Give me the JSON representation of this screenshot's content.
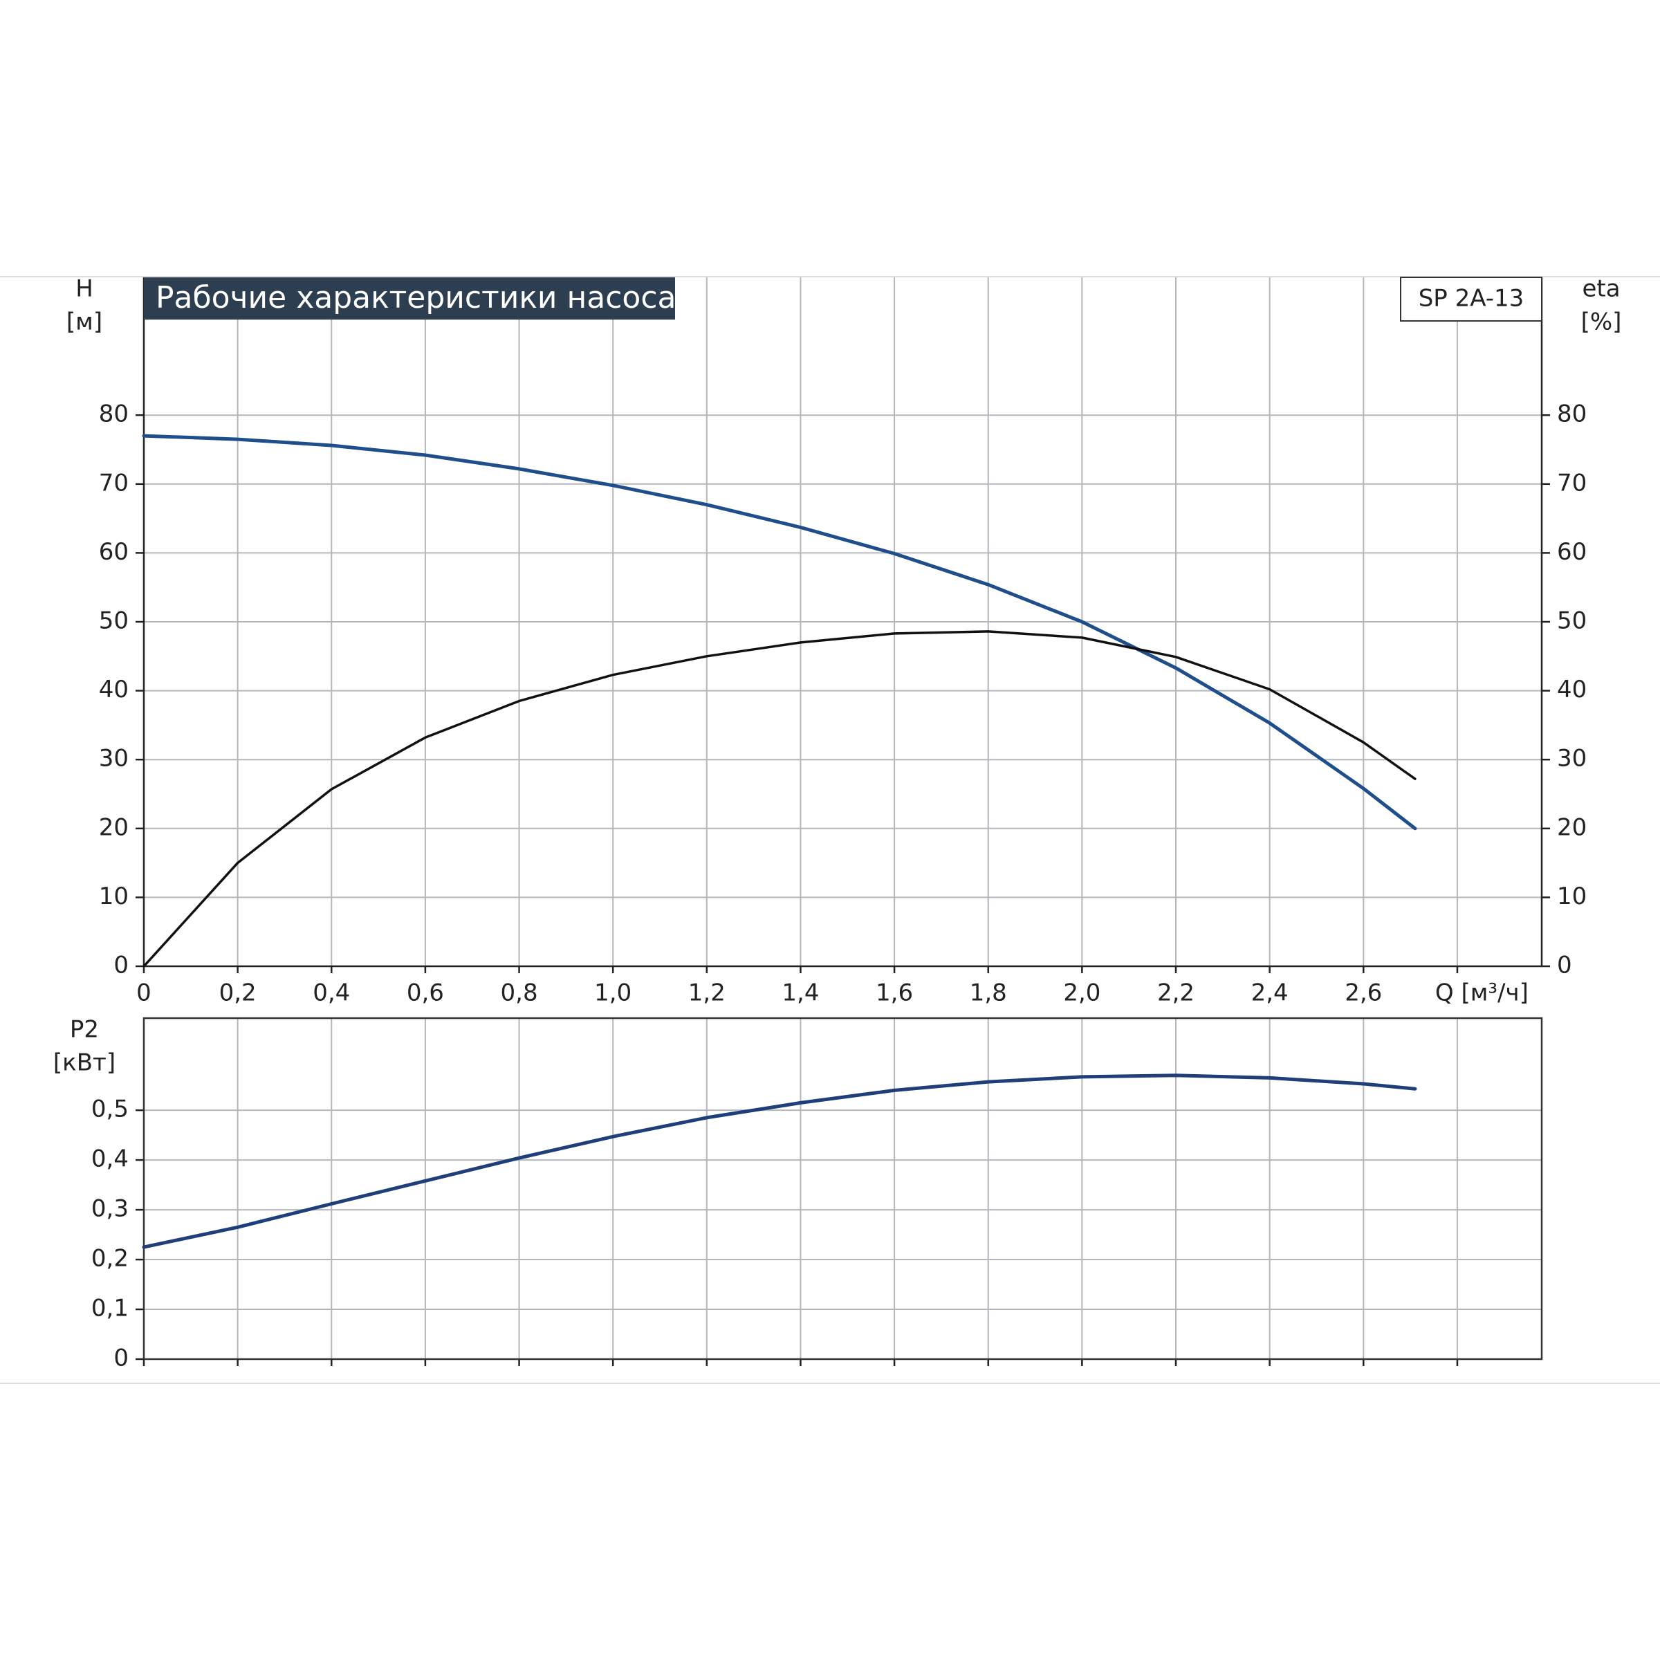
{
  "chart_data": [
    {
      "type": "line",
      "title": "Рабочие характеристики насоса",
      "model": "SP 2A-13",
      "ylabel": "H",
      "yunit": "[м]",
      "y2label": "eta",
      "y2unit": "[%]",
      "x": [
        0,
        0.2,
        0.4,
        0.6,
        0.8,
        1.0,
        1.2,
        1.4,
        1.6,
        1.8,
        2.0,
        2.2,
        2.4,
        2.6,
        2.71
      ],
      "xlim": [
        0,
        2.98
      ],
      "xticks": [
        0,
        {
          "value": 0.2,
          "label": "0,2"
        },
        {
          "value": 0.4,
          "label": "0,4"
        },
        {
          "value": 0.6,
          "label": "0,6"
        },
        {
          "value": 0.8,
          "label": "0,8"
        },
        {
          "value": 1.0,
          "label": "1,0"
        },
        {
          "value": 1.2,
          "label": "1,2"
        },
        {
          "value": 1.4,
          "label": "1,4"
        },
        {
          "value": 1.6,
          "label": "1,6"
        },
        {
          "value": 1.8,
          "label": "1,8"
        },
        {
          "value": 2.0,
          "label": "2,0"
        },
        {
          "value": 2.2,
          "label": "2,2"
        },
        {
          "value": 2.4,
          "label": "2,4"
        },
        {
          "value": 2.6,
          "label": "2,6"
        },
        {
          "value": 2.8,
          "label": "Q [м³/ч]"
        }
      ],
      "ylim": [
        0,
        100
      ],
      "yticks": [
        0,
        10,
        20,
        30,
        40,
        50,
        60,
        70,
        80
      ],
      "y2lim": [
        0,
        100
      ],
      "y2ticks": [
        0,
        10,
        20,
        30,
        40,
        50,
        60,
        70,
        80
      ],
      "grid": true,
      "series": [
        {
          "name": "H",
          "color": "#1f4e8c",
          "values": [
            77,
            76.5,
            75.6,
            74.2,
            72.2,
            69.8,
            67.0,
            63.7,
            59.9,
            55.4,
            50.0,
            43.3,
            35.3,
            25.8,
            20
          ]
        },
        {
          "name": "eta",
          "color": "#111111",
          "axis": "y2",
          "values": [
            0,
            15,
            25.7,
            33.2,
            38.5,
            42.3,
            45.0,
            47.0,
            48.3,
            48.6,
            47.7,
            44.9,
            40.2,
            32.5,
            27.2
          ]
        }
      ]
    },
    {
      "type": "line",
      "ylabel": "P2",
      "yunit": "[кВт]",
      "x": [
        0,
        0.2,
        0.4,
        0.6,
        0.8,
        1.0,
        1.2,
        1.4,
        1.6,
        1.8,
        2.0,
        2.2,
        2.4,
        2.6,
        2.71
      ],
      "xlim": [
        0,
        2.98
      ],
      "ylim": [
        0,
        0.685
      ],
      "yticks": [
        0,
        {
          "value": 0.1,
          "label": "0,1"
        },
        {
          "value": 0.2,
          "label": "0,2"
        },
        {
          "value": 0.3,
          "label": "0,3"
        },
        {
          "value": 0.4,
          "label": "0,4"
        },
        {
          "value": 0.5,
          "label": "0,5"
        }
      ],
      "grid": true,
      "series": [
        {
          "name": "P2",
          "color": "#1f3f7a",
          "values": [
            0.225,
            0.265,
            0.312,
            0.358,
            0.404,
            0.447,
            0.485,
            0.515,
            0.54,
            0.557,
            0.567,
            0.57,
            0.565,
            0.553,
            0.543
          ]
        }
      ]
    }
  ]
}
